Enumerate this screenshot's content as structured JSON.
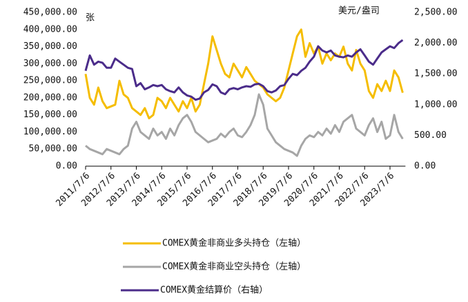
{
  "chart_data": {
    "type": "line",
    "y_unit": "张",
    "y2_unit": "美元/盎司",
    "categories": [
      "2011/7/6",
      null,
      null,
      null,
      null,
      null,
      "2012/7/6",
      null,
      null,
      null,
      null,
      null,
      "2013/7/6",
      null,
      null,
      null,
      null,
      null,
      "2014/7/6",
      null,
      null,
      null,
      null,
      null,
      "2015/7/6",
      null,
      null,
      null,
      null,
      null,
      "2016/7/6",
      null,
      null,
      null,
      null,
      null,
      "2017/7/6",
      null,
      null,
      null,
      null,
      null,
      "2018/7/6",
      null,
      null,
      null,
      null,
      null,
      "2019/7/6",
      null,
      null,
      null,
      null,
      null,
      "2020/7/6",
      null,
      null,
      null,
      null,
      null,
      "2021/7/6",
      null,
      null,
      null,
      null,
      null,
      "2022/7/6",
      null,
      null,
      null,
      null,
      null,
      "2023/7/6",
      null,
      null,
      null
    ],
    "ylim": [
      0,
      450000
    ],
    "yticks": [
      {
        "value": 0,
        "label": "0.00"
      },
      {
        "value": 50000,
        "label": "50,000.00"
      },
      {
        "value": 100000,
        "label": "100,000.00"
      },
      {
        "value": 150000,
        "label": "150,000.00"
      },
      {
        "value": 200000,
        "label": "200,000.00"
      },
      {
        "value": 250000,
        "label": "250,000.00"
      },
      {
        "value": 300000,
        "label": "300,000.00"
      },
      {
        "value": 350000,
        "label": "350,000.00"
      },
      {
        "value": 400000,
        "label": "400,000.00"
      },
      {
        "value": 450000,
        "label": "450,000.00"
      }
    ],
    "y2lim": [
      0,
      2500
    ],
    "y2ticks": [
      {
        "value": 0,
        "label": "0.00"
      },
      {
        "value": 500,
        "label": "500.00"
      },
      {
        "value": 1000,
        "label": "1,000.00"
      },
      {
        "value": 1500,
        "label": "1,500.00"
      },
      {
        "value": 2000,
        "label": "2,000.00"
      },
      {
        "value": 2500,
        "label": "2,500.00"
      }
    ],
    "legend": "bottom",
    "series": [
      {
        "name": "COMEX黄金非商业多头持仓（左轴）",
        "color": "#f5bd00",
        "axis": "y",
        "values": [
          270000,
          200000,
          180000,
          230000,
          190000,
          170000,
          175000,
          180000,
          250000,
          210000,
          200000,
          170000,
          160000,
          150000,
          170000,
          140000,
          150000,
          200000,
          190000,
          170000,
          200000,
          180000,
          160000,
          190000,
          170000,
          200000,
          160000,
          180000,
          240000,
          300000,
          380000,
          340000,
          300000,
          270000,
          260000,
          300000,
          280000,
          260000,
          290000,
          270000,
          250000,
          240000,
          230000,
          210000,
          200000,
          190000,
          200000,
          230000,
          280000,
          330000,
          380000,
          400000,
          320000,
          360000,
          330000,
          350000,
          300000,
          330000,
          310000,
          330000,
          320000,
          350000,
          300000,
          280000,
          340000,
          300000,
          280000,
          220000,
          200000,
          240000,
          220000,
          250000,
          220000,
          280000,
          260000,
          215000
        ]
      },
      {
        "name": "COMEX黄金非商业空头持仓（左轴）",
        "color": "#a6a6a6",
        "axis": "y",
        "values": [
          60000,
          50000,
          45000,
          40000,
          35000,
          50000,
          45000,
          40000,
          35000,
          50000,
          60000,
          110000,
          130000,
          100000,
          90000,
          80000,
          110000,
          90000,
          100000,
          80000,
          110000,
          90000,
          120000,
          140000,
          150000,
          130000,
          100000,
          90000,
          80000,
          70000,
          75000,
          80000,
          95000,
          85000,
          100000,
          110000,
          90000,
          85000,
          100000,
          120000,
          150000,
          210000,
          180000,
          110000,
          90000,
          70000,
          60000,
          50000,
          45000,
          40000,
          30000,
          60000,
          80000,
          90000,
          85000,
          100000,
          90000,
          110000,
          95000,
          120000,
          100000,
          130000,
          140000,
          150000,
          110000,
          100000,
          90000,
          120000,
          140000,
          100000,
          130000,
          80000,
          90000,
          150000,
          100000,
          80000
        ]
      },
      {
        "name": "COMEX黄金结算价（右轴）",
        "color": "#4b2c8a",
        "axis": "y2",
        "values": [
          1550,
          1800,
          1650,
          1700,
          1680,
          1600,
          1600,
          1750,
          1700,
          1650,
          1600,
          1580,
          1300,
          1350,
          1250,
          1280,
          1320,
          1300,
          1320,
          1250,
          1220,
          1200,
          1280,
          1200,
          1150,
          1130,
          1080,
          1100,
          1200,
          1240,
          1330,
          1300,
          1200,
          1170,
          1250,
          1270,
          1250,
          1280,
          1300,
          1290,
          1330,
          1340,
          1300,
          1220,
          1200,
          1230,
          1300,
          1320,
          1420,
          1500,
          1480,
          1550,
          1600,
          1700,
          1780,
          1950,
          1880,
          1850,
          1880,
          1800,
          1780,
          1770,
          1800,
          1780,
          1850,
          1900,
          1800,
          1700,
          1650,
          1750,
          1850,
          1900,
          1950,
          1920,
          2000,
          2050
        ]
      }
    ]
  }
}
